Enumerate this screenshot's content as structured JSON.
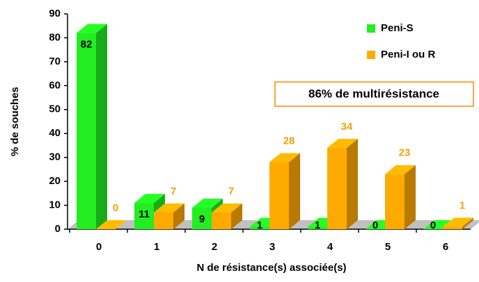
{
  "chart_data": {
    "type": "bar3d",
    "xlabel": "N de résistance(s) associée(s)",
    "ylabel": "% de souches",
    "annotation": "86% de multirésistance",
    "categories": [
      "0",
      "1",
      "2",
      "3",
      "4",
      "5",
      "6"
    ],
    "series": [
      {
        "name": "Peni-S",
        "color": "#22ee22",
        "values": [
          82,
          11,
          9,
          1,
          1,
          0,
          0
        ]
      },
      {
        "name": "Peni-I ou R",
        "color": "#ffaa00",
        "values": [
          0,
          7,
          7,
          28,
          34,
          23,
          1
        ]
      }
    ],
    "ylim": [
      0,
      90
    ],
    "yticks": [
      0,
      10,
      20,
      30,
      40,
      50,
      60,
      70,
      80,
      90
    ],
    "legend": "upper right"
  }
}
